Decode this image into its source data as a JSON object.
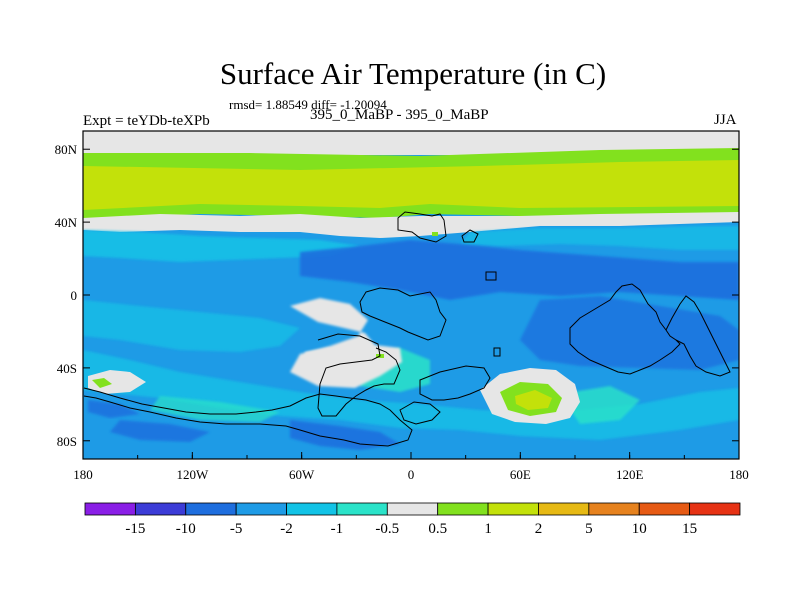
{
  "title": "Surface Air Temperature (in C)",
  "stats": "rmsd= 1.88549 diff= -1.20094",
  "experiment": "Expt = teYDb-teXPb",
  "subtitle": "395_0_MaBP - 395_0_MaBP",
  "season": "JJA",
  "map": {
    "lon_range": [
      -180,
      180
    ],
    "lat_range": [
      -90,
      90
    ],
    "lon_ticks": [
      {
        "value": -180,
        "label": "180"
      },
      {
        "value": -120,
        "label": "120W"
      },
      {
        "value": -60,
        "label": "60W"
      },
      {
        "value": 0,
        "label": "0"
      },
      {
        "value": 60,
        "label": "60E"
      },
      {
        "value": 120,
        "label": "120E"
      },
      {
        "value": 180,
        "label": "180"
      }
    ],
    "lat_ticks": [
      {
        "value": 80,
        "label": "80N"
      },
      {
        "value": 40,
        "label": "40N"
      },
      {
        "value": 0,
        "label": "0"
      },
      {
        "value": -40,
        "label": "40S"
      },
      {
        "value": -80,
        "label": "80S"
      }
    ]
  },
  "colorbar": {
    "labels": [
      "-15",
      "-10",
      "-5",
      "-2",
      "-1",
      "-0.5",
      "0.5",
      "1",
      "2",
      "5",
      "10",
      "15"
    ],
    "colors": [
      "#8a1ee6",
      "#3c3cd7",
      "#1e6ede",
      "#1e9be6",
      "#12c3e6",
      "#2be3c9",
      "#e6e6e6",
      "#82e11e",
      "#c3e10a",
      "#e6b914",
      "#e6821e",
      "#e65a14",
      "#e63214"
    ]
  },
  "colors": {
    "land_outline": "#000000",
    "frame": "#000000"
  }
}
